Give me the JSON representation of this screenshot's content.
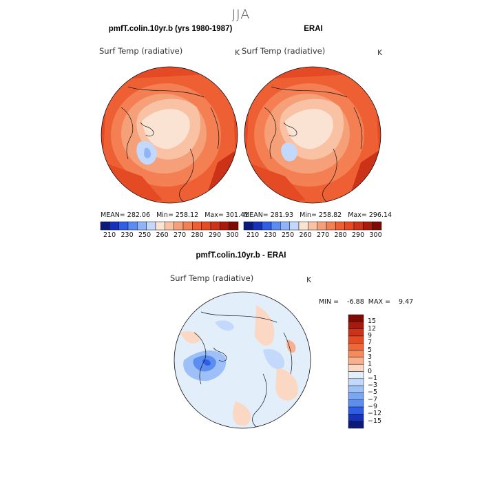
{
  "figure": {
    "season": "JJA"
  },
  "panels": {
    "model": {
      "title": "pmfT.colin.10yr.b (yrs 1980-1987)",
      "variable": "Surf Temp (radiative)",
      "units": "K",
      "stats": "MEAN= 282.06   Min= 258.12   Max= 301.41",
      "colorbar_ticks": [
        "210",
        "230",
        "250",
        "260",
        "270",
        "280",
        "290",
        "300"
      ]
    },
    "obs": {
      "title": "ERAI",
      "variable": "Surf Temp (radiative)",
      "units": "K",
      "stats": "MEAN= 281.93   Min= 258.82   Max= 296.14",
      "colorbar_ticks": [
        "210",
        "230",
        "250",
        "260",
        "270",
        "280",
        "290",
        "300"
      ]
    },
    "diff": {
      "title": "pmfT.colin.10yr.b - ERAI",
      "variable": "Surf Temp (radiative)",
      "units": "K",
      "stats": "MIN =    -6.88  MAX =    9.47",
      "colorbar_ticks": [
        "15",
        "12",
        "9",
        "7",
        "5",
        "3",
        "1",
        "0",
        "−1",
        "−3",
        "−5",
        "−7",
        "−9",
        "−12",
        "−15"
      ]
    }
  },
  "colors": {
    "abs_scale": [
      "#0b1a7a",
      "#1632b8",
      "#2f5ee6",
      "#5b8cf3",
      "#8fb5f8",
      "#c3d9fb",
      "#fbe3d3",
      "#f9c2a4",
      "#f5a079",
      "#f37f53",
      "#ee6034",
      "#e44a24",
      "#cc3218",
      "#a81a0e",
      "#7e0a06"
    ],
    "diff_scale": [
      "#7e0a06",
      "#a81a0e",
      "#cc3218",
      "#e44a24",
      "#f06838",
      "#f58a5c",
      "#f8b08e",
      "#fbd8c3",
      "#e3eefb",
      "#c3d9fb",
      "#9cc0f7",
      "#7aa7f3",
      "#5c8ef0",
      "#2f5ee6",
      "#1632b8",
      "#0b1a7a"
    ]
  }
}
